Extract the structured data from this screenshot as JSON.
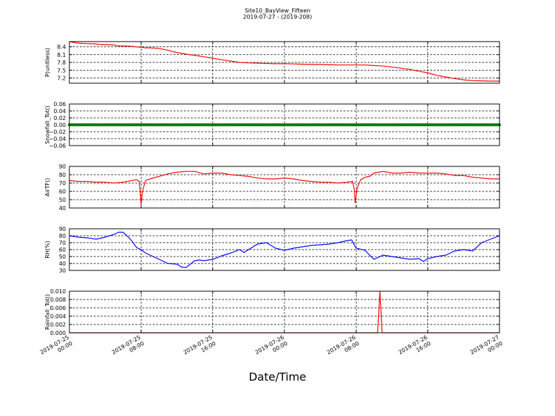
{
  "title": "Site10_BayView_Fifteen",
  "subtitle": "2019-07-27 - (2019-208)",
  "xlabel": "Date/Time",
  "chart_data": {
    "type": "line",
    "title": "Site10_BayView_Fifteen",
    "subtitle": "2019-07-27 - (2019-208)",
    "xlabel": "Date/Time",
    "xlim_hours": [
      0,
      48
    ],
    "x_ticks": [
      {
        "hour": 0,
        "line1": "2019-07-25",
        "line2": "00:00"
      },
      {
        "hour": 8,
        "line1": "2019-07-25",
        "line2": "08:00"
      },
      {
        "hour": 16,
        "line1": "2019-07-25",
        "line2": "16:00"
      },
      {
        "hour": 24,
        "line1": "2019-07-26",
        "line2": "00:00"
      },
      {
        "hour": 32,
        "line1": "2019-07-26",
        "line2": "08:00"
      },
      {
        "hour": 40,
        "line1": "2019-07-26",
        "line2": "16:00"
      },
      {
        "hour": 48,
        "line1": "2019-07-27",
        "line2": "00:00"
      }
    ],
    "grid": true,
    "panels": [
      {
        "ylabel": "P(unitless)",
        "ylim": [
          7.0,
          8.6
        ],
        "yticks": [
          "8.4",
          "8.1",
          "7.8",
          "7.5",
          "7.2"
        ],
        "ytick_values": [
          8.4,
          8.1,
          7.8,
          7.5,
          7.2
        ],
        "color": "#ff0000",
        "marker": false,
        "series": {
          "x": [
            0,
            0.8,
            1.5,
            3,
            3.2,
            5,
            5.3,
            7,
            7.3,
            8,
            8.5,
            9,
            10,
            10.5,
            11,
            11.5,
            12,
            13,
            14,
            15,
            16,
            17,
            18,
            19,
            20,
            21,
            22,
            23,
            24,
            25,
            26,
            27,
            28,
            29,
            30,
            31,
            32,
            33,
            34,
            35,
            36,
            37,
            38,
            39,
            40,
            41,
            42,
            43,
            44,
            45,
            46,
            47,
            48
          ],
          "y": [
            8.6,
            8.55,
            8.53,
            8.51,
            8.49,
            8.47,
            8.44,
            8.42,
            8.4,
            8.38,
            8.36,
            8.36,
            8.34,
            8.3,
            8.27,
            8.22,
            8.18,
            8.12,
            8.07,
            8.02,
            7.96,
            7.9,
            7.85,
            7.8,
            7.78,
            7.77,
            7.76,
            7.75,
            7.75,
            7.74,
            7.73,
            7.72,
            7.72,
            7.71,
            7.7,
            7.7,
            7.7,
            7.7,
            7.68,
            7.66,
            7.62,
            7.58,
            7.53,
            7.46,
            7.4,
            7.3,
            7.24,
            7.18,
            7.13,
            7.1,
            7.09,
            7.08,
            7.08
          ]
        }
      },
      {
        "ylabel": "Snowfall_Tot()",
        "ylim": [
          -0.06,
          0.06
        ],
        "yticks": [
          "0.06",
          "0.04",
          "0.02",
          "0.00",
          "−0.02",
          "−0.04",
          "−0.06"
        ],
        "ytick_values": [
          0.06,
          0.04,
          0.02,
          0.0,
          -0.02,
          -0.04,
          -0.06
        ],
        "color": "#008000",
        "marker": true,
        "series": {
          "x": [
            0,
            48
          ],
          "y": [
            0,
            0
          ]
        }
      },
      {
        "ylabel": "AirTF()",
        "ylim": [
          40,
          90
        ],
        "yticks": [
          "90",
          "80",
          "70",
          "60",
          "50",
          "40"
        ],
        "ytick_values": [
          90,
          80,
          70,
          60,
          50,
          40
        ],
        "color": "#ff0000",
        "marker": false,
        "series": {
          "x": [
            0,
            1,
            2,
            3,
            4,
            5,
            6,
            7,
            7.5,
            7.8,
            7.9,
            8.0,
            8.2,
            8.5,
            9,
            10,
            11,
            12,
            13,
            14,
            15,
            16,
            17,
            18,
            19,
            20,
            21,
            22,
            23,
            24,
            25,
            26,
            27,
            28,
            29,
            30,
            31,
            31.6,
            31.8,
            31.9,
            32.1,
            32.5,
            33,
            33.5,
            34,
            35,
            36,
            37,
            38,
            39,
            40,
            41,
            42,
            43,
            44,
            45,
            46,
            47,
            48
          ],
          "y": [
            73,
            72,
            72,
            71,
            71,
            70,
            71,
            73,
            74,
            72,
            60,
            44,
            62,
            73,
            75,
            78,
            81,
            83,
            84,
            84,
            81,
            82,
            82,
            80,
            79,
            78,
            76,
            75,
            75,
            76,
            75,
            73,
            72,
            71,
            71,
            70,
            71,
            72,
            62,
            46,
            63,
            74,
            77,
            78,
            82,
            84,
            82,
            82,
            83,
            82,
            82,
            82,
            81,
            79,
            79,
            77,
            76,
            75,
            75
          ]
        }
      },
      {
        "ylabel": "RH(%)",
        "ylim": [
          30,
          90
        ],
        "yticks": [
          "90",
          "80",
          "70",
          "60",
          "50",
          "40",
          "30"
        ],
        "ytick_values": [
          90,
          80,
          70,
          60,
          50,
          40,
          30
        ],
        "color": "#0000ff",
        "marker": false,
        "series": {
          "x": [
            0,
            1,
            2,
            3,
            4,
            5,
            5.5,
            6,
            6.5,
            7,
            7.5,
            8,
            8.5,
            9,
            10,
            11,
            12,
            12.5,
            13,
            14,
            14.5,
            15,
            16,
            17,
            18,
            19,
            19.5,
            20,
            21,
            22,
            23,
            24,
            25,
            26,
            27,
            28,
            29,
            30,
            31,
            31.5,
            32,
            33,
            33.5,
            34,
            35,
            36,
            37,
            38,
            39,
            39.5,
            40,
            41,
            42,
            42.5,
            43,
            44,
            45,
            46,
            47,
            48
          ],
          "y": [
            80,
            78,
            77,
            75,
            78,
            82,
            85,
            85,
            79,
            72,
            63,
            60,
            55,
            52,
            46,
            40,
            39,
            35,
            34,
            44,
            45,
            44,
            46,
            51,
            55,
            60,
            56,
            60,
            68,
            70,
            62,
            59,
            62,
            64,
            66,
            67,
            68,
            70,
            73,
            74,
            62,
            59,
            52,
            46,
            52,
            50,
            48,
            46,
            47,
            43,
            47,
            50,
            52,
            55,
            58,
            60,
            58,
            70,
            75,
            80
          ]
        }
      },
      {
        "ylabel": "Rainfall_Tot()",
        "ylim": [
          0,
          0.01
        ],
        "yticks": [
          "0.010",
          "0.008",
          "0.006",
          "0.004",
          "0.002",
          "0.000"
        ],
        "ytick_values": [
          0.01,
          0.008,
          0.006,
          0.004,
          0.002,
          0.0
        ],
        "color": "#ff0000",
        "marker": false,
        "series": {
          "x": [
            0,
            34.4,
            34.65,
            34.9,
            48
          ],
          "y": [
            0,
            0,
            0.01,
            0,
            0
          ]
        }
      }
    ]
  }
}
